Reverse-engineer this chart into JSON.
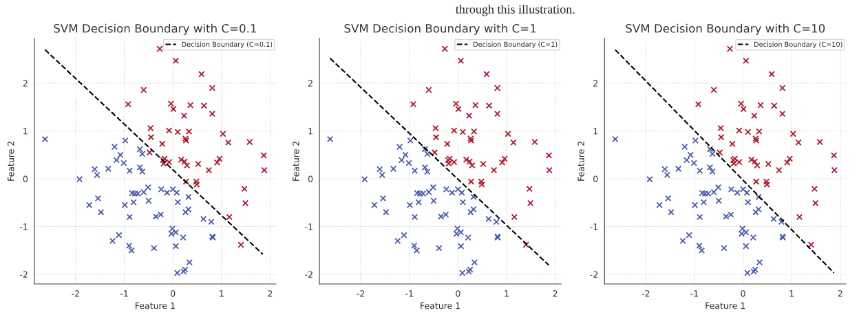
{
  "chart_data": [
    {
      "type": "scatter",
      "title": "SVM Decision Boundary with C=0.1",
      "xlabel": "Feature 1",
      "ylabel": "Feature 2",
      "annotations": [
        "through this illustration."
      ],
      "xlim": [
        -2.85,
        2.12
      ],
      "ylim": [
        -2.2,
        2.94
      ],
      "xticks": [
        -2,
        -1,
        0,
        1,
        2
      ],
      "yticks": [
        -2,
        -1,
        0,
        1,
        2
      ],
      "grid": true,
      "legend": "top right",
      "marker": "cross",
      "series": [
        {
          "color": "#b2182b",
          "x": [
            -0.27,
            0.06,
            0.59,
            0.81,
            -0.6,
            -0.92,
            -0.04,
            0.01,
            0.36,
            0.64,
            0.23,
            0.81,
            -0.46,
            -0.08,
            0.1,
            0.33,
            1.03,
            -0.45,
            -0.22,
            0.26,
            0.27,
            1.14,
            1.58,
            1.87,
            -0.48,
            -0.2,
            -0.17,
            -0.19,
            -0.08,
            0.17,
            0.24,
            0.29,
            0.52,
            0.74,
            0.91,
            0.96,
            1.88,
            0.48,
            0.49,
            0.27,
            1.47,
            1.49,
            1.16,
            1.4
          ],
          "values": [
            2.72,
            2.47,
            2.19,
            1.9,
            1.86,
            1.56,
            1.57,
            1.46,
            1.54,
            1.53,
            1.32,
            1.36,
            1.06,
            1.01,
            0.98,
            0.99,
            0.94,
            0.87,
            0.73,
            0.84,
            0.8,
            0.76,
            0.77,
            0.49,
            0.55,
            0.39,
            0.42,
            0.32,
            0.35,
            0.4,
            0.36,
            0.28,
            0.31,
            0.18,
            0.34,
            0.42,
            0.18,
            -0.06,
            -0.12,
            -0.06,
            -0.21,
            -0.51,
            -0.8,
            -1.38
          ]
        },
        {
          "color": "#4a5bb0",
          "x": [
            -2.63,
            -0.98,
            -1.2,
            -0.68,
            -1.08,
            -0.63,
            -1.16,
            -1.01,
            -1.61,
            -1.33,
            -0.68,
            -0.89,
            -0.63,
            -1.56,
            -1.92,
            -0.84,
            -0.78,
            -0.72,
            -0.6,
            -0.51,
            -0.24,
            -0.12,
            0.0,
            0.08,
            0.32,
            0.1,
            -0.81,
            -0.5,
            -1.54,
            -1.72,
            -1.48,
            -0.99,
            -0.89,
            -0.35,
            -0.25,
            0.26,
            0.32,
            0.63,
            0.79,
            0.81,
            0.82,
            -0.01,
            -0.03,
            0.06,
            0.21,
            -1.11,
            -1.24,
            -0.9,
            -0.85,
            -0.39,
            0.06,
            0.34,
            0.25,
            0.22,
            0.09
          ],
          "values": [
            0.83,
            0.8,
            0.67,
            0.62,
            0.5,
            0.52,
            0.39,
            0.33,
            0.2,
            0.21,
            0.24,
            0.17,
            0.15,
            0.08,
            -0.01,
            -0.3,
            -0.31,
            -0.31,
            -0.28,
            -0.18,
            -0.22,
            -0.29,
            -0.22,
            -0.29,
            -0.38,
            -0.49,
            -0.49,
            -0.46,
            -0.41,
            -0.55,
            -0.7,
            -0.55,
            -0.8,
            -0.79,
            -0.75,
            -0.7,
            -0.64,
            -0.84,
            -0.9,
            -1.21,
            -1.23,
            -1.04,
            -1.15,
            -1.12,
            -1.23,
            -1.18,
            -1.3,
            -1.4,
            -1.5,
            -1.45,
            -1.41,
            -1.75,
            -1.9,
            -1.94,
            -1.97
          ]
        },
        {
          "type": "line",
          "name": "Decision Boundary (C=0.1)",
          "color": "#000000",
          "line_style": "dashed",
          "marker": "none",
          "x": [
            -2.63,
            1.85
          ],
          "values": [
            2.7,
            -1.58
          ]
        }
      ]
    },
    {
      "type": "scatter",
      "title": "SVM Decision Boundary with C=1",
      "xlabel": "Feature 1",
      "ylabel": "Feature 2",
      "xlim": [
        -2.85,
        2.12
      ],
      "ylim": [
        -2.2,
        2.94
      ],
      "xticks": [
        -2,
        -1,
        0,
        1,
        2
      ],
      "yticks": [
        -2,
        -1,
        0,
        1,
        2
      ],
      "grid": true,
      "legend": "top right",
      "marker": "cross",
      "series": [
        {
          "color": "#b2182b",
          "x": [
            -0.27,
            0.06,
            0.59,
            0.81,
            -0.6,
            -0.92,
            -0.04,
            0.01,
            0.36,
            0.64,
            0.23,
            0.81,
            -0.46,
            -0.08,
            0.1,
            0.33,
            1.03,
            -0.45,
            -0.22,
            0.26,
            0.27,
            1.14,
            1.58,
            1.87,
            -0.48,
            -0.2,
            -0.17,
            -0.19,
            -0.08,
            0.17,
            0.24,
            0.29,
            0.52,
            0.74,
            0.91,
            0.96,
            1.88,
            0.48,
            0.49,
            0.27,
            1.47,
            1.49,
            1.16,
            1.4
          ],
          "values": [
            2.72,
            2.47,
            2.19,
            1.9,
            1.86,
            1.56,
            1.57,
            1.46,
            1.54,
            1.53,
            1.32,
            1.36,
            1.06,
            1.01,
            0.98,
            0.99,
            0.94,
            0.87,
            0.73,
            0.84,
            0.8,
            0.76,
            0.77,
            0.49,
            0.55,
            0.39,
            0.42,
            0.32,
            0.35,
            0.4,
            0.36,
            0.28,
            0.31,
            0.18,
            0.34,
            0.42,
            0.18,
            -0.06,
            -0.12,
            -0.06,
            -0.21,
            -0.51,
            -0.8,
            -1.38
          ]
        },
        {
          "color": "#4a5bb0",
          "x": [
            -2.63,
            -0.98,
            -1.2,
            -0.68,
            -1.08,
            -0.63,
            -1.16,
            -1.01,
            -1.61,
            -1.33,
            -0.68,
            -0.89,
            -0.63,
            -1.56,
            -1.92,
            -0.84,
            -0.78,
            -0.72,
            -0.6,
            -0.51,
            -0.24,
            -0.12,
            0.0,
            0.08,
            0.32,
            0.1,
            -0.81,
            -0.5,
            -1.54,
            -1.72,
            -1.48,
            -0.99,
            -0.89,
            -0.35,
            -0.25,
            0.26,
            0.32,
            0.63,
            0.79,
            0.81,
            0.82,
            -0.01,
            -0.03,
            0.06,
            0.21,
            -1.11,
            -1.24,
            -0.9,
            -0.85,
            -0.39,
            0.06,
            0.34,
            0.25,
            0.22,
            0.09
          ],
          "values": [
            0.83,
            0.8,
            0.67,
            0.62,
            0.5,
            0.52,
            0.39,
            0.33,
            0.2,
            0.21,
            0.24,
            0.17,
            0.15,
            0.08,
            -0.01,
            -0.3,
            -0.31,
            -0.31,
            -0.28,
            -0.18,
            -0.22,
            -0.29,
            -0.22,
            -0.29,
            -0.38,
            -0.49,
            -0.49,
            -0.46,
            -0.41,
            -0.55,
            -0.7,
            -0.55,
            -0.8,
            -0.79,
            -0.75,
            -0.7,
            -0.64,
            -0.84,
            -0.9,
            -1.21,
            -1.23,
            -1.04,
            -1.15,
            -1.12,
            -1.23,
            -1.18,
            -1.3,
            -1.4,
            -1.5,
            -1.45,
            -1.41,
            -1.75,
            -1.9,
            -1.94,
            -1.97
          ]
        },
        {
          "type": "line",
          "name": "Decision Boundary (C=1)",
          "color": "#000000",
          "line_style": "dashed",
          "marker": "none",
          "x": [
            -2.63,
            1.87
          ],
          "values": [
            2.52,
            -1.81
          ]
        }
      ]
    },
    {
      "type": "scatter",
      "title": "SVM Decision Boundary with C=10",
      "xlabel": "Feature 1",
      "ylabel": "Feature 2",
      "xlim": [
        -2.85,
        2.12
      ],
      "ylim": [
        -2.2,
        2.94
      ],
      "xticks": [
        -2,
        -1,
        0,
        1,
        2
      ],
      "yticks": [
        -2,
        -1,
        0,
        1,
        2
      ],
      "grid": true,
      "legend": "top right",
      "marker": "cross",
      "series": [
        {
          "color": "#b2182b",
          "x": [
            -0.27,
            0.06,
            0.59,
            0.81,
            -0.6,
            -0.92,
            -0.04,
            0.01,
            0.36,
            0.64,
            0.23,
            0.81,
            -0.46,
            -0.08,
            0.1,
            0.33,
            1.03,
            -0.45,
            -0.22,
            0.26,
            0.27,
            1.14,
            1.58,
            1.87,
            -0.48,
            -0.2,
            -0.17,
            -0.19,
            -0.08,
            0.17,
            0.24,
            0.29,
            0.52,
            0.74,
            0.91,
            0.96,
            1.88,
            0.48,
            0.49,
            0.27,
            1.47,
            1.49,
            1.16,
            1.4
          ],
          "values": [
            2.72,
            2.47,
            2.19,
            1.9,
            1.86,
            1.56,
            1.57,
            1.46,
            1.54,
            1.53,
            1.32,
            1.36,
            1.06,
            1.01,
            0.98,
            0.99,
            0.94,
            0.87,
            0.73,
            0.84,
            0.8,
            0.76,
            0.77,
            0.49,
            0.55,
            0.39,
            0.42,
            0.32,
            0.35,
            0.4,
            0.36,
            0.28,
            0.31,
            0.18,
            0.34,
            0.42,
            0.18,
            -0.06,
            -0.12,
            -0.06,
            -0.21,
            -0.51,
            -0.8,
            -1.38
          ]
        },
        {
          "color": "#4a5bb0",
          "x": [
            -2.63,
            -0.98,
            -1.2,
            -0.68,
            -1.08,
            -0.63,
            -1.16,
            -1.01,
            -1.61,
            -1.33,
            -0.68,
            -0.89,
            -0.63,
            -1.56,
            -1.92,
            -0.84,
            -0.78,
            -0.72,
            -0.6,
            -0.51,
            -0.24,
            -0.12,
            0.0,
            0.08,
            0.32,
            0.1,
            -0.81,
            -0.5,
            -1.54,
            -1.72,
            -1.48,
            -0.99,
            -0.89,
            -0.35,
            -0.25,
            0.26,
            0.32,
            0.63,
            0.79,
            0.81,
            0.82,
            -0.01,
            -0.03,
            0.06,
            0.21,
            -1.11,
            -1.24,
            -0.9,
            -0.85,
            -0.39,
            0.06,
            0.34,
            0.25,
            0.22,
            0.09
          ],
          "values": [
            0.83,
            0.8,
            0.67,
            0.62,
            0.5,
            0.52,
            0.39,
            0.33,
            0.2,
            0.21,
            0.24,
            0.17,
            0.15,
            0.08,
            -0.01,
            -0.3,
            -0.31,
            -0.31,
            -0.28,
            -0.18,
            -0.22,
            -0.29,
            -0.22,
            -0.29,
            -0.38,
            -0.49,
            -0.49,
            -0.46,
            -0.41,
            -0.55,
            -0.7,
            -0.55,
            -0.8,
            -0.79,
            -0.75,
            -0.7,
            -0.64,
            -0.84,
            -0.9,
            -1.21,
            -1.23,
            -1.04,
            -1.15,
            -1.12,
            -1.23,
            -1.18,
            -1.3,
            -1.4,
            -1.5,
            -1.45,
            -1.41,
            -1.75,
            -1.9,
            -1.94,
            -1.97
          ]
        },
        {
          "type": "line",
          "name": "Decision Boundary (C=10)",
          "color": "#000000",
          "line_style": "dashed",
          "marker": "none",
          "x": [
            -2.63,
            1.87
          ],
          "values": [
            2.7,
            -1.97
          ]
        }
      ]
    }
  ]
}
